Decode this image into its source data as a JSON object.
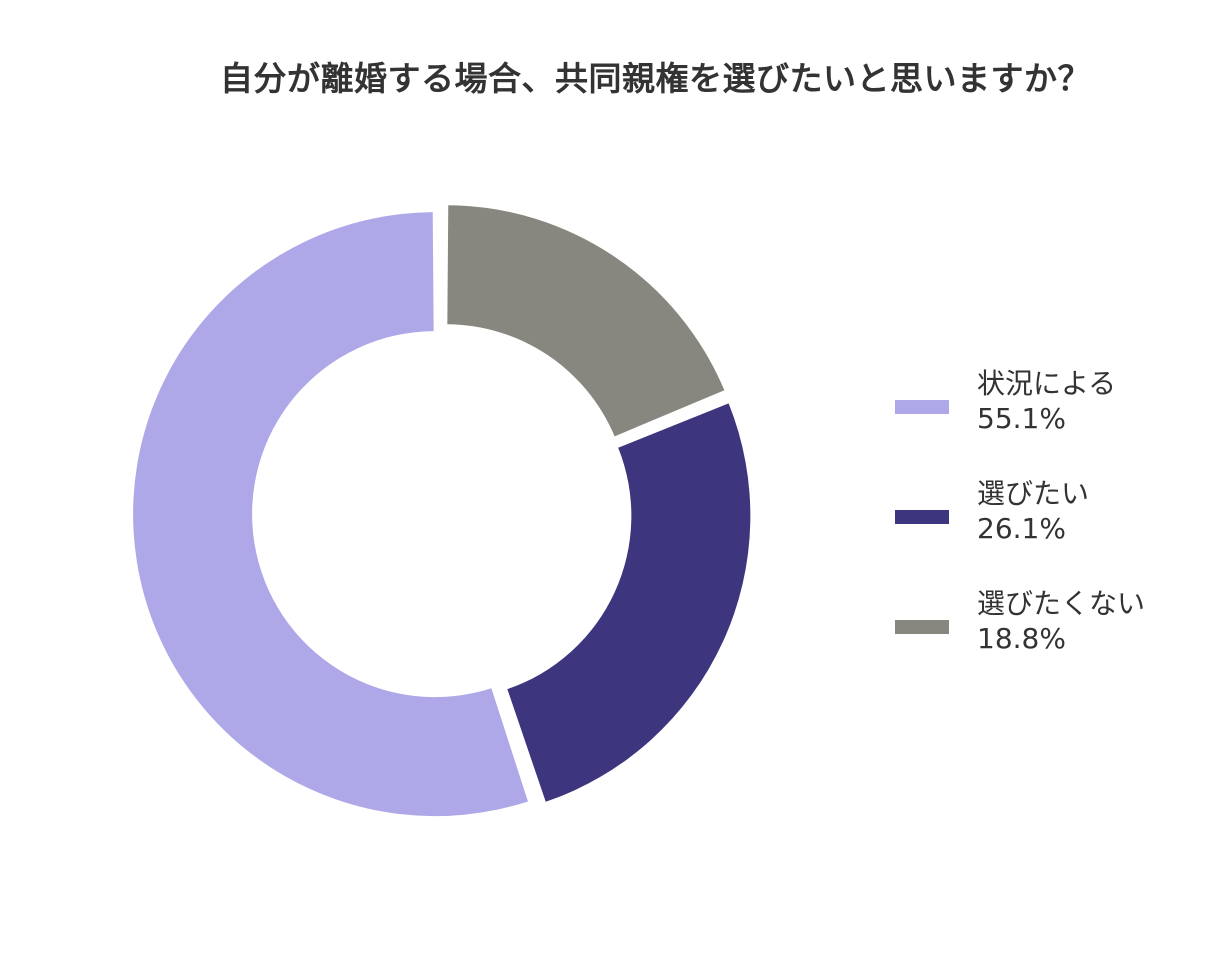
{
  "chart_data": {
    "type": "pie",
    "subtype": "donut",
    "title": "自分が離婚する場合、共同親権を選びたいと思いますか？",
    "categories": [
      "状況による",
      "選びたい",
      "選びたくない"
    ],
    "values": [
      55.1,
      26.1,
      18.8
    ],
    "unit": "%",
    "colors": [
      "#afa8e8",
      "#3d357d",
      "#88877f"
    ],
    "legend_position": "right",
    "start_angle_deg": 0,
    "direction": "clockwise",
    "draw_order": [
      "選びたくない",
      "選びたい",
      "状況による"
    ],
    "hole_ratio": 0.6,
    "exploded": true
  },
  "title": "自分が離婚する場合、共同親権を選びたいと思いますか？",
  "legend": {
    "items": [
      {
        "label": "状況による",
        "value": "55.1%",
        "color": "#afa8e8"
      },
      {
        "label": "選びたい",
        "value": "26.1%",
        "color": "#3d357d"
      },
      {
        "label": "選びたくない",
        "value": "18.8%",
        "color": "#88877f"
      }
    ]
  }
}
